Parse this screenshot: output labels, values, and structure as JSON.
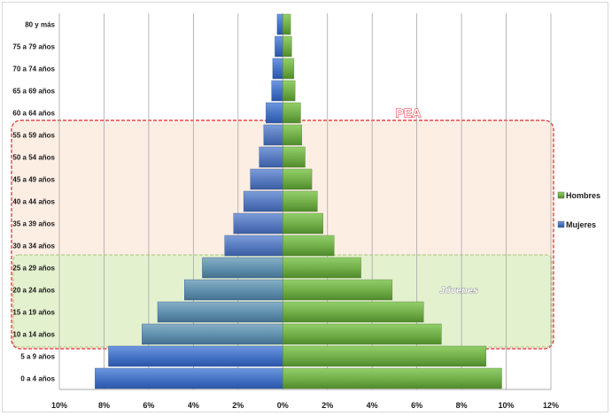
{
  "chart_data": {
    "type": "bar",
    "orientation": "horizontal",
    "layout": "population-pyramid",
    "categories": [
      "0 a 4 años",
      "5 a 9 años",
      "10 a 14 años",
      "15 a 19 años",
      "20 a 24 años",
      "25 a 29 años",
      "30 a 34 años",
      "35 a 39 años",
      "40 a 44 años",
      "45 a 49 años",
      "50 a 54 años",
      "55 a 59 años",
      "60 a 64 años",
      "65 a 69 años",
      "70 a 74 años",
      "75 a 79 años",
      "80 y más"
    ],
    "series": [
      {
        "name": "Hombres",
        "color": "#70ad47",
        "values": [
          9.8,
          9.1,
          7.1,
          6.3,
          4.9,
          3.5,
          2.3,
          1.8,
          1.55,
          1.3,
          1.0,
          0.85,
          0.8,
          0.55,
          0.5,
          0.4,
          0.35
        ]
      },
      {
        "name": "Mujeres",
        "color": "#4472c4",
        "values": [
          8.4,
          7.8,
          6.3,
          5.6,
          4.4,
          3.6,
          2.6,
          2.2,
          1.75,
          1.45,
          1.05,
          0.85,
          0.75,
          0.5,
          0.45,
          0.35,
          0.25
        ]
      }
    ],
    "xlim": [
      -10,
      12
    ],
    "xticks": [
      "10%",
      "8%",
      "6%",
      "4%",
      "2%",
      "0%",
      "2%",
      "4%",
      "6%",
      "8%",
      "10%",
      "12%"
    ],
    "grid": true,
    "legend": "right",
    "annotations": [
      {
        "label": "PEA",
        "from_category": "10 a 14 años",
        "to_category": "55 a 59 años",
        "fill": "#fdeee4",
        "border": "#e0242a"
      },
      {
        "label": "Jóvenes",
        "from_category": "10 a 14 años",
        "to_category": "25 a 29 años",
        "fill": "#e4f1cf",
        "border": "#a9c47a"
      }
    ]
  }
}
